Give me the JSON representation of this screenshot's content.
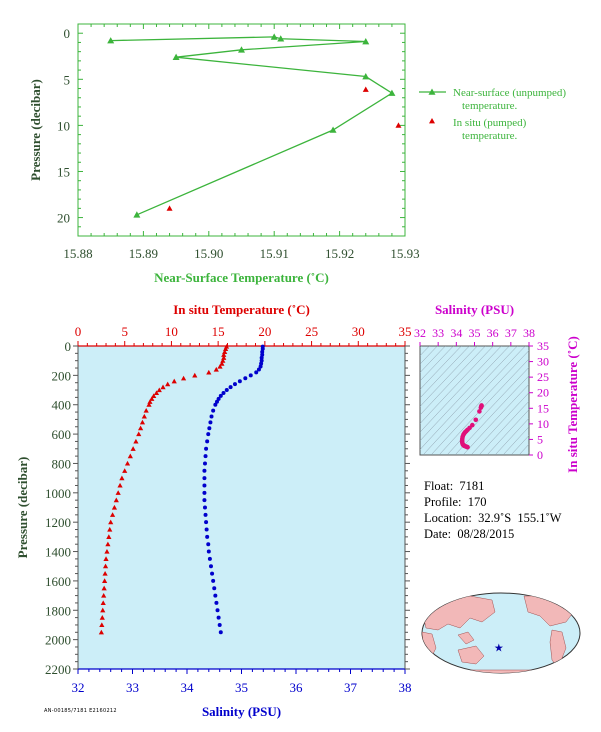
{
  "colors": {
    "green": "#3cb43c",
    "red": "#dd0000",
    "blue": "#0000cc",
    "magenta": "#cc00cc",
    "axis_text": "#2f4f2f",
    "panel_bg": "#cceef8",
    "map_ocean": "#cceef8",
    "map_land": "#f2b8b8"
  },
  "charts": {
    "near_surface": {
      "type": "line",
      "xlabel": "Near-Surface Temperature (˚C)",
      "ylabel": "Pressure (decibar)",
      "xlim": [
        15.88,
        15.93
      ],
      "ylim": [
        22,
        -1
      ],
      "x_ticks": [
        "15.88",
        "15.89",
        "15.90",
        "15.91",
        "15.92",
        "15.93"
      ],
      "y_ticks": [
        "0",
        "5",
        "10",
        "15",
        "20"
      ],
      "legend": {
        "unpumped_line1": "Near-surface (unpumped)",
        "unpumped_line2": "temperature.",
        "pumped_line1": "In situ (pumped)",
        "pumped_line2": "temperature."
      }
    },
    "profile": {
      "type": "scatter",
      "ylabel": "Pressure (decibar)",
      "ylim": [
        2200,
        0
      ],
      "y_ticks": [
        "0",
        "200",
        "400",
        "600",
        "800",
        "1000",
        "1200",
        "1400",
        "1600",
        "1800",
        "2000",
        "2200"
      ],
      "top_axis": {
        "label": "In situ Temperature (˚C)",
        "ticks": [
          "0",
          "5",
          "10",
          "15",
          "20",
          "25",
          "30",
          "35"
        ],
        "xlim": [
          0,
          35
        ]
      },
      "bottom_axis": {
        "label": "Salinity (PSU)",
        "ticks": [
          "32",
          "33",
          "34",
          "35",
          "36",
          "37",
          "38"
        ],
        "xlim": [
          32,
          38
        ]
      }
    },
    "ts": {
      "type": "scatter",
      "xlabel": "Salinity (PSU)",
      "ylabel": "In situ Temperature (˚C)",
      "xlim": [
        32,
        38
      ],
      "ylim": [
        0,
        35
      ],
      "x_ticks": [
        "32",
        "33",
        "34",
        "35",
        "36",
        "37",
        "38"
      ],
      "y_ticks": [
        "0",
        "5",
        "10",
        "15",
        "20",
        "25",
        "30",
        "35"
      ]
    }
  },
  "chart_data": [
    {
      "type": "line",
      "xlabel": "Near-Surface Temperature (˚C)",
      "ylabel": "Pressure (decibar)",
      "xlim": [
        15.88,
        15.93
      ],
      "ylim": [
        22,
        -1
      ],
      "series": [
        {
          "name": "Near-surface (unpumped) temperature.",
          "x": [
            15.885,
            15.91,
            15.911,
            15.924,
            15.905,
            15.895,
            15.924,
            15.928,
            15.919,
            15.889
          ],
          "y": [
            0.8,
            0.4,
            0.6,
            0.9,
            1.8,
            2.6,
            4.7,
            6.5,
            10.5,
            19.7
          ]
        },
        {
          "name": "In situ (pumped) temperature.",
          "x": [
            15.924,
            15.929,
            15.894
          ],
          "y": [
            6.1,
            10.0,
            19.0
          ]
        }
      ]
    },
    {
      "type": "scatter",
      "title": "In situ Temperature (˚C)",
      "xlim": [
        0,
        35
      ],
      "ylim": [
        2200,
        0
      ],
      "series": [
        {
          "pressure": [
            4,
            20,
            40,
            60,
            80,
            100,
            120,
            140,
            160,
            180,
            200,
            220,
            240,
            260,
            280,
            300,
            320,
            340,
            360,
            380,
            400,
            440,
            480,
            520,
            560,
            600,
            650,
            700,
            750,
            800,
            850,
            900,
            950,
            1000,
            1050,
            1100,
            1150,
            1200,
            1250,
            1300,
            1350,
            1400,
            1450,
            1500,
            1550,
            1600,
            1650,
            1700,
            1750,
            1800,
            1850,
            1900,
            1950
          ],
          "temperature": [
            15.9,
            15.8,
            15.7,
            15.6,
            15.6,
            15.5,
            15.4,
            15.2,
            14.8,
            14.0,
            12.5,
            11.3,
            10.3,
            9.6,
            9.1,
            8.7,
            8.4,
            8.1,
            7.9,
            7.7,
            7.6,
            7.3,
            7.1,
            6.9,
            6.7,
            6.5,
            6.2,
            5.9,
            5.6,
            5.3,
            5.0,
            4.7,
            4.5,
            4.3,
            4.1,
            3.9,
            3.7,
            3.5,
            3.4,
            3.3,
            3.2,
            3.1,
            3.0,
            2.95,
            2.9,
            2.85,
            2.8,
            2.75,
            2.7,
            2.65,
            2.6,
            2.55,
            2.5
          ]
        }
      ]
    },
    {
      "type": "scatter",
      "title": "Salinity (PSU)",
      "xlim": [
        32,
        38
      ],
      "ylim": [
        2200,
        0
      ],
      "series": [
        {
          "pressure": [
            4,
            20,
            40,
            60,
            80,
            100,
            120,
            140,
            160,
            180,
            200,
            220,
            240,
            260,
            280,
            300,
            320,
            340,
            360,
            380,
            400,
            440,
            480,
            520,
            560,
            600,
            650,
            700,
            750,
            800,
            850,
            900,
            950,
            1000,
            1050,
            1100,
            1150,
            1200,
            1250,
            1300,
            1350,
            1400,
            1450,
            1500,
            1550,
            1600,
            1650,
            1700,
            1750,
            1800,
            1850,
            1900,
            1950
          ],
          "salinity": [
            35.39,
            35.39,
            35.38,
            35.38,
            35.37,
            35.37,
            35.36,
            35.35,
            35.32,
            35.27,
            35.17,
            35.07,
            34.97,
            34.88,
            34.8,
            34.73,
            34.67,
            34.62,
            34.58,
            34.55,
            34.52,
            34.48,
            34.45,
            34.43,
            34.41,
            34.39,
            34.37,
            34.35,
            34.34,
            34.33,
            34.32,
            34.32,
            34.32,
            34.32,
            34.32,
            34.33,
            34.34,
            34.35,
            34.36,
            34.37,
            34.39,
            34.4,
            34.42,
            34.44,
            34.46,
            34.48,
            34.5,
            34.52,
            34.54,
            34.56,
            34.58,
            34.6,
            34.62
          ]
        }
      ]
    },
    {
      "type": "scatter",
      "xlabel": "Salinity (PSU)",
      "ylabel": "In situ Temperature (˚C)",
      "xlim": [
        32,
        38
      ],
      "ylim": [
        0,
        35
      ],
      "series": [
        {
          "salinity": [
            35.39,
            35.38,
            35.37,
            35.35,
            35.27,
            35.07,
            34.88,
            34.73,
            34.62,
            34.55,
            34.48,
            34.43,
            34.39,
            34.35,
            34.33,
            34.32,
            34.32,
            34.33,
            34.35,
            34.37,
            34.4,
            34.44,
            34.48,
            34.52,
            34.56,
            34.6,
            34.62
          ],
          "temperature": [
            15.9,
            15.7,
            15.5,
            15.2,
            14.0,
            11.3,
            9.6,
            8.7,
            8.1,
            7.7,
            7.3,
            6.9,
            6.5,
            5.9,
            5.3,
            4.7,
            4.3,
            3.9,
            3.5,
            3.3,
            3.1,
            2.95,
            2.85,
            2.75,
            2.65,
            2.55,
            2.5
          ]
        }
      ]
    }
  ],
  "float_info": {
    "float": "Float:  7181",
    "profile": "Profile:  170",
    "location": "Location:  32.9˚S  155.1˚W",
    "date": "Date:  08/28/2015"
  },
  "map": {
    "marker_lon": -155.1,
    "marker_lat": -32.9
  },
  "footer_code": "AN-00185/7181 E2160212"
}
